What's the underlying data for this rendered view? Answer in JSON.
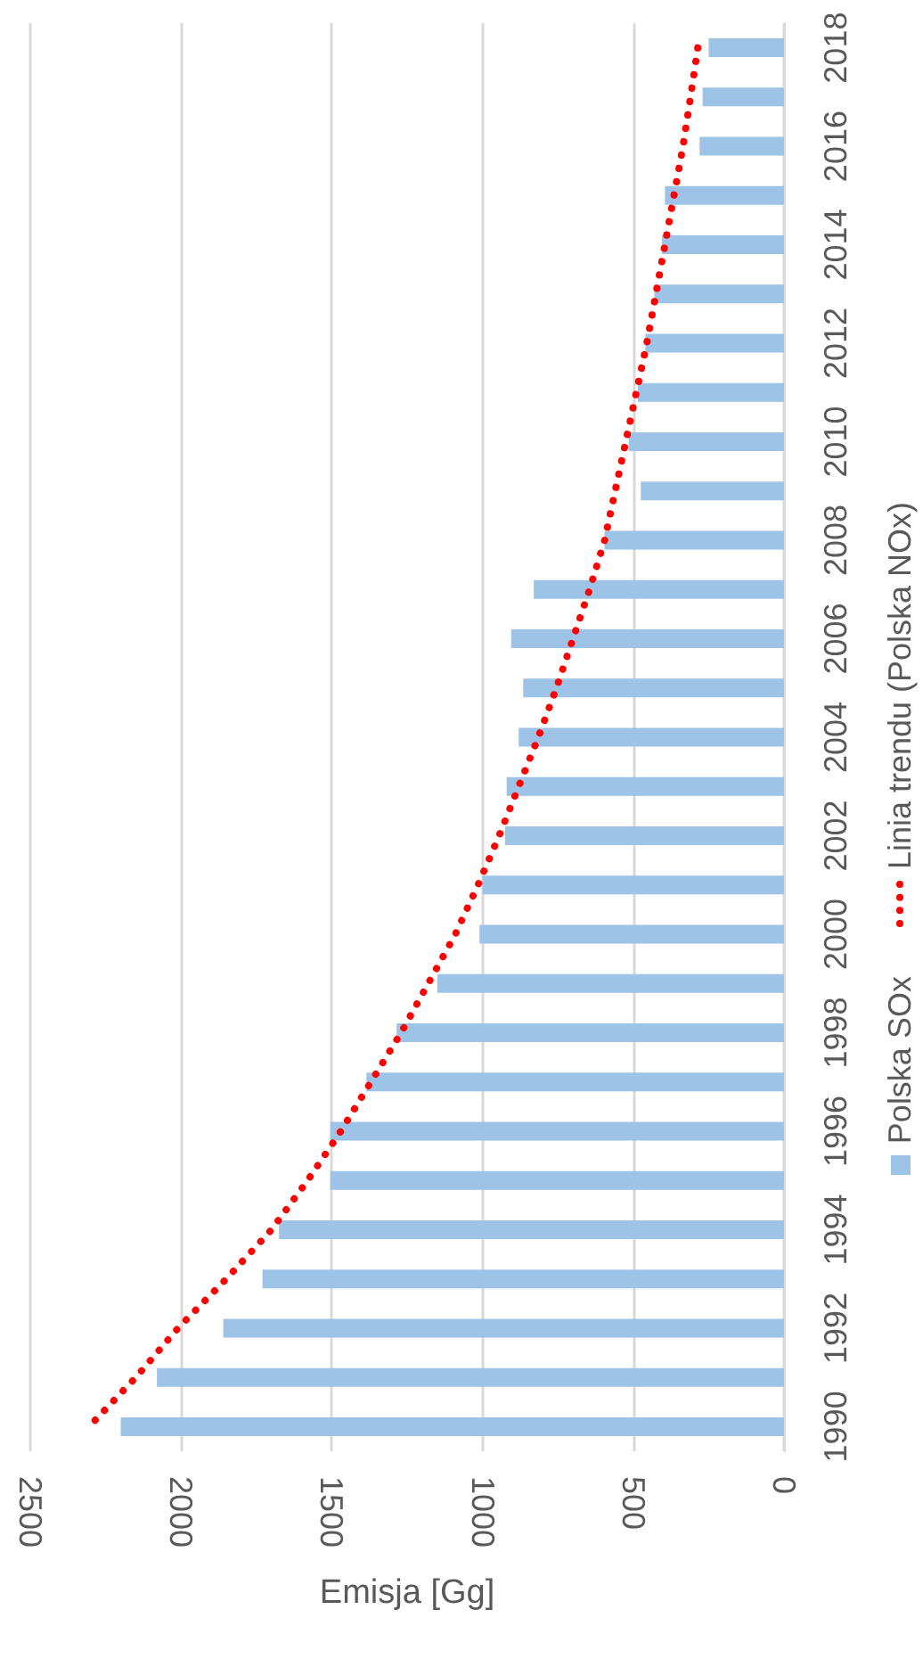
{
  "chart_data": {
    "type": "bar",
    "orientation": "horizontal",
    "xlabel": "Emisja [Gg]",
    "categories": [
      "2018",
      null,
      "2016",
      null,
      "2014",
      null,
      "2012",
      null,
      "2010",
      null,
      "2008",
      null,
      "2006",
      null,
      "2004",
      null,
      "2002",
      null,
      "2000",
      null,
      "1998",
      null,
      "1996",
      null,
      "1994",
      null,
      "1992",
      null,
      "1990"
    ],
    "series": [
      {
        "name": "Polska SOx",
        "color": "#9dc3e6",
        "values": [
          250,
          270,
          280,
          395,
          405,
          430,
          460,
          485,
          515,
          475,
          595,
          830,
          905,
          865,
          880,
          920,
          925,
          1000,
          1010,
          1150,
          1285,
          1385,
          1505,
          1505,
          1675,
          1730,
          1860,
          2080,
          2200
        ]
      },
      {
        "name": "Linia trendu (Polska NOx)",
        "type": "line",
        "color": "#ff0000",
        "line_style": "dotted",
        "marker": "none",
        "values": [
          286,
          310,
          335,
          365,
          395,
          425,
          455,
          490,
          525,
          560,
          595,
          645,
          700,
          755,
          815,
          880,
          945,
          1015,
          1090,
          1180,
          1270,
          1370,
          1470,
          1580,
          1700,
          1850,
          2010,
          2150,
          2305
        ]
      }
    ],
    "xlim": [
      2500,
      0
    ],
    "xticks": [
      2500,
      2000,
      1500,
      1000,
      500,
      0
    ],
    "grid": "x",
    "legend": "right"
  }
}
